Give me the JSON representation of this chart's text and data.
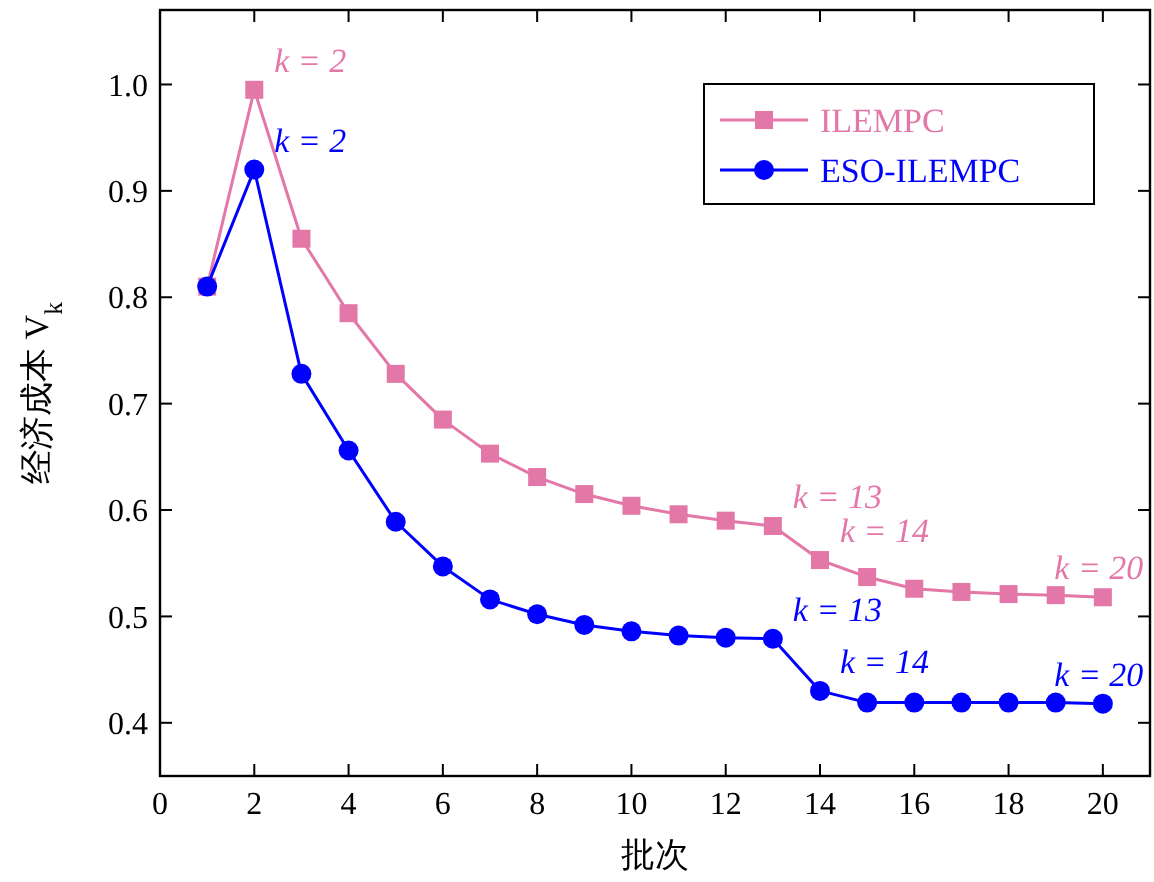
{
  "chart_data": {
    "type": "line",
    "xlabel": "批次",
    "ylabel": "经济成本  V$_{k}$",
    "x": [
      1,
      2,
      3,
      4,
      5,
      6,
      7,
      8,
      9,
      10,
      11,
      12,
      13,
      14,
      15,
      16,
      17,
      18,
      19,
      20
    ],
    "series": [
      {
        "name": "ILEMPC",
        "color": "#e377a8",
        "marker": "square",
        "values": [
          0.81,
          0.995,
          0.855,
          0.785,
          0.728,
          0.685,
          0.653,
          0.631,
          0.615,
          0.604,
          0.596,
          0.59,
          0.585,
          0.553,
          0.537,
          0.526,
          0.523,
          0.521,
          0.52,
          0.518
        ]
      },
      {
        "name": "ESO-ILEMPC",
        "color": "#0000ff",
        "marker": "circle",
        "values": [
          0.81,
          0.92,
          0.728,
          0.656,
          0.589,
          0.547,
          0.516,
          0.502,
          0.492,
          0.486,
          0.482,
          0.48,
          0.479,
          0.43,
          0.419,
          0.419,
          0.419,
          0.419,
          0.419,
          0.418
        ]
      }
    ],
    "xlim": [
      0,
      21
    ],
    "xticks": [
      0,
      2,
      4,
      6,
      8,
      10,
      12,
      14,
      16,
      18,
      20
    ],
    "ylim": [
      0.35,
      1.07
    ],
    "yticks": [
      0.4,
      0.5,
      0.6,
      0.7,
      0.8,
      0.9,
      {
        "value": 1,
        "label": "1.0"
      }
    ],
    "grid": false,
    "legend": "top right",
    "line_style": "solid",
    "annotations": [
      {
        "text": "k = 2",
        "x": 2,
        "y": 0.995
      },
      {
        "text": "k = 2",
        "x": 2,
        "y": 0.92
      },
      {
        "text": "k = 13",
        "x": 13,
        "y": 0.585
      },
      {
        "text": "k = 14",
        "x": 14,
        "y": 0.553
      },
      {
        "text": "k = 20",
        "x": 20,
        "y": 0.518
      },
      {
        "text": "k = 13",
        "x": 13,
        "y": 0.479
      },
      {
        "text": "k = 14",
        "x": 14,
        "y": 0.43
      },
      {
        "text": "k = 20",
        "x": 20,
        "y": 0.418
      }
    ]
  }
}
